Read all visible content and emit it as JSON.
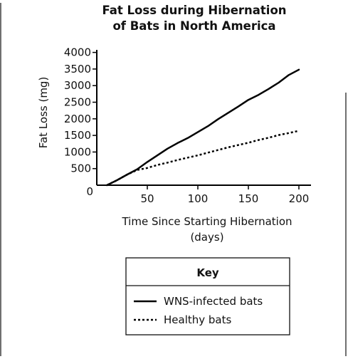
{
  "chart_data": {
    "type": "line",
    "title": [
      "Fat Loss during Hibernation",
      "of Bats in North America"
    ],
    "xlabel": [
      "Time Since Starting Hibernation",
      "(days)"
    ],
    "ylabel": "Fat Loss (mg)",
    "xlim": [
      0,
      200
    ],
    "ylim": [
      0,
      4000
    ],
    "x_ticks": [
      50,
      100,
      150,
      200
    ],
    "y_ticks": [
      500,
      1000,
      1500,
      2000,
      2500,
      3000,
      3500,
      4000
    ],
    "origin_label": "0",
    "grid": false,
    "legend": {
      "title": "Key",
      "placement": "below"
    },
    "series": [
      {
        "name": "WNS-infected bats",
        "style": "solid",
        "color": "#000000",
        "x": [
          10,
          20,
          30,
          40,
          50,
          60,
          70,
          80,
          90,
          100,
          110,
          120,
          130,
          140,
          150,
          160,
          170,
          180,
          190,
          200
        ],
        "y": [
          0,
          150,
          320,
          480,
          700,
          900,
          1100,
          1270,
          1420,
          1600,
          1780,
          1990,
          2180,
          2370,
          2570,
          2720,
          2900,
          3090,
          3320,
          3480
        ]
      },
      {
        "name": "Healthy bats",
        "style": "dotted",
        "color": "#000000",
        "x": [
          10,
          20,
          30,
          40,
          50,
          60,
          70,
          80,
          90,
          100,
          110,
          120,
          130,
          140,
          150,
          160,
          170,
          180,
          190,
          200
        ],
        "y": [
          0,
          150,
          320,
          460,
          520,
          610,
          680,
          760,
          830,
          900,
          980,
          1060,
          1140,
          1210,
          1280,
          1360,
          1430,
          1510,
          1570,
          1640
        ]
      }
    ]
  }
}
